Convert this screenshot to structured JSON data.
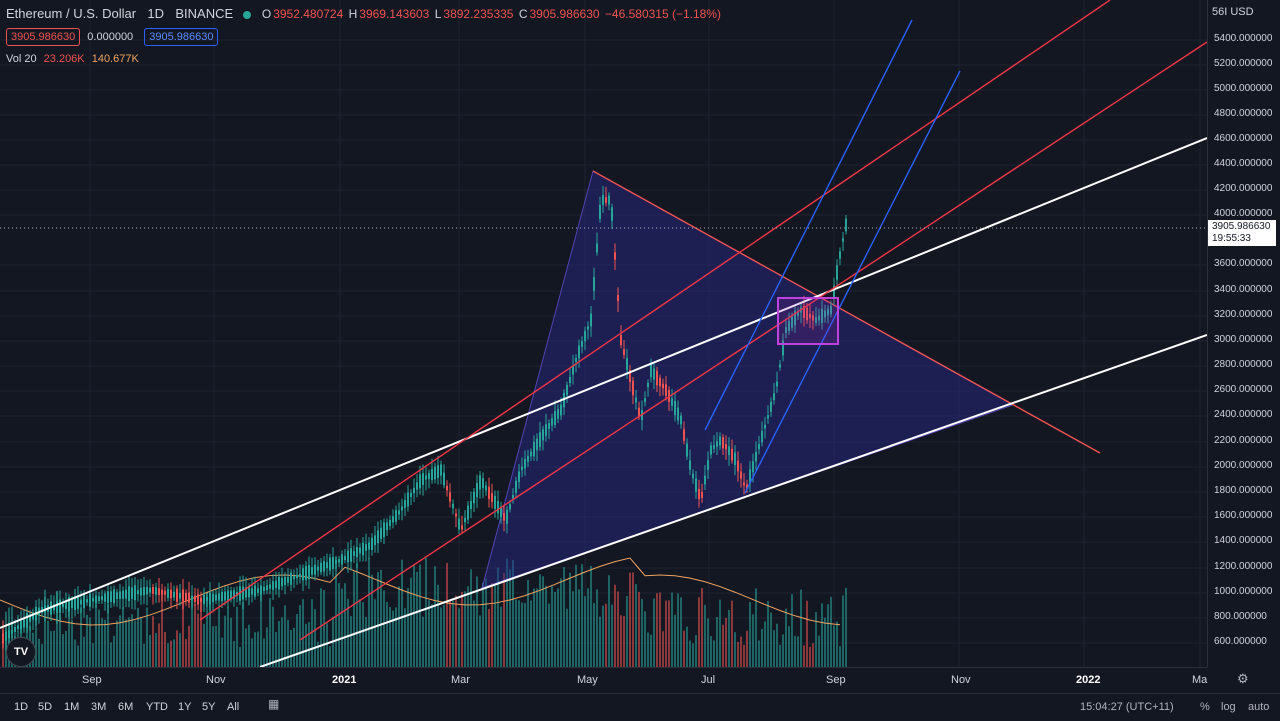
{
  "legend": {
    "symbol": "Ethereum / U.S. Dollar",
    "interval": "1D",
    "exchange": "BINANCE",
    "open_label": "O",
    "open": "3952.480724",
    "high_label": "H",
    "high": "3969.143603",
    "low_label": "L",
    "low": "3892.235335",
    "close_label": "C",
    "close": "3905.986630",
    "change": "−46.580315 (−1.18%)",
    "box_red": "3905.986630",
    "zero": "0.000000",
    "box_blue": "3905.986630",
    "vol_label": "Vol 20",
    "vol_a": "23.206K",
    "vol_b": "140.677K"
  },
  "price_axis": {
    "currency": "56I USD",
    "ticks": [
      "5400.000000",
      "5200.000000",
      "5000.000000",
      "4800.000000",
      "4600.000000",
      "4400.000000",
      "4200.000000",
      "4000.000000",
      "3600.000000",
      "3400.000000",
      "3200.000000",
      "3000.000000",
      "2800.000000",
      "2600.000000",
      "2400.000000",
      "2200.000000",
      "2000.000000",
      "1800.000000",
      "1600.000000",
      "1400.000000",
      "1200.000000",
      "1000.000000",
      "800.000000",
      "600.000000"
    ],
    "last_price": "3905.986630",
    "countdown": "19:55:33"
  },
  "time_axis": {
    "ticks": [
      "Sep",
      "Nov",
      "2021",
      "Mar",
      "May",
      "Jul",
      "Sep",
      "Nov",
      "2022",
      "Ma"
    ]
  },
  "bottom_bar": {
    "timeframes": [
      "1D",
      "5D",
      "1M",
      "3M",
      "6M",
      "YTD",
      "1Y",
      "5Y",
      "All"
    ],
    "clock": "15:04:27 (UTC+11)",
    "percent": "%",
    "log": "log",
    "auto": "auto"
  },
  "icons": {
    "logo": "tradingview-logo-icon",
    "settings": "gear-icon",
    "date_range": "calendar-icon"
  },
  "colors": {
    "bull": "#26a69a",
    "bear": "#ef5350",
    "white_line": "#ffffff",
    "red_line": "#f23645",
    "blue_line": "#2962ff",
    "purple_box": "#9c27b0",
    "triangle_fill": "#1e1e6e"
  }
}
